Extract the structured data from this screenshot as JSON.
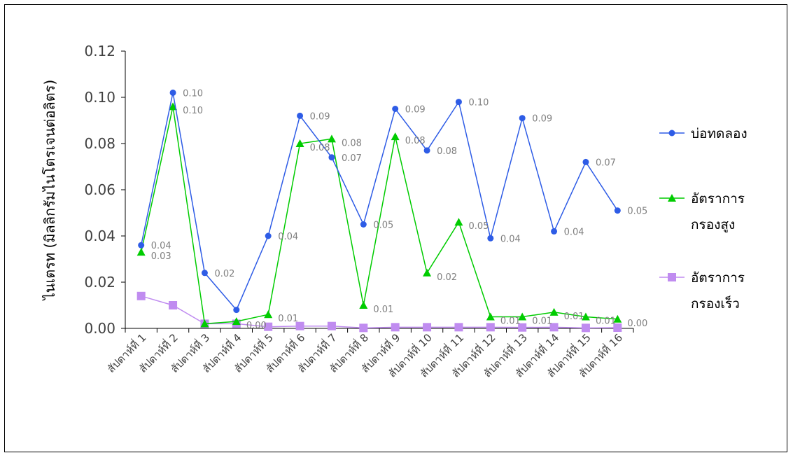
{
  "chart_data": {
    "type": "line",
    "title": "",
    "xlabel": "",
    "ylabel": "ไนเตรท (มิลลิกรัมไนโตรเจนต่อลิตร)",
    "ylim": [
      0,
      0.12
    ],
    "yticks": [
      "0.00",
      "0.02",
      "0.04",
      "0.06",
      "0.08",
      "0.10",
      "0.12"
    ],
    "grid": false,
    "legend_position": "right",
    "categories": [
      "สัปดาห์ที่ 1",
      "สัปดาห์ที่ 2",
      "สัปดาห์ที่ 3",
      "สัปดาห์ที่ 4",
      "สัปดาห์ที่ 5",
      "สัปดาห์ที่ 6",
      "สัปดาห์ที่ 7",
      "สัปดาห์ที่ 8",
      "สัปดาห์ที่ 9",
      "สัปดาห์ที่ 10",
      "สัปดาห์ที่ 11",
      "สัปดาห์ที่ 12",
      "สัปดาห์ที่ 13",
      "สัปดาห์ที่ 14",
      "สัปดาห์ที่ 15",
      "สัปดาห์ที่ 16"
    ],
    "series": [
      {
        "name": "บ่อทดลอง",
        "legend_lines": [
          "บ่อทดลอง"
        ],
        "color": "#2e5ce6",
        "marker": "circle",
        "values": [
          0.036,
          0.102,
          0.024,
          0.008,
          0.04,
          0.092,
          0.074,
          0.045,
          0.095,
          0.077,
          0.098,
          0.039,
          0.091,
          0.042,
          0.072,
          0.051
        ],
        "labels": [
          "0.04",
          "0.10",
          "0.02",
          "",
          "0.04",
          "0.09",
          "0.07",
          "0.05",
          "0.09",
          "0.08",
          "0.10",
          "0.04",
          "0.09",
          "0.04",
          "0.07",
          "0.05"
        ]
      },
      {
        "name": "อัตราการกรองสูง",
        "legend_lines": [
          "อัตราการ",
          "กรองสูง"
        ],
        "color": "#00cc00",
        "marker": "triangle",
        "values": [
          0.033,
          0.096,
          0.002,
          0.003,
          0.006,
          0.08,
          0.082,
          0.01,
          0.083,
          0.024,
          0.046,
          0.005,
          0.005,
          0.007,
          0.005,
          0.004
        ],
        "labels": [
          "0.03",
          "0.10",
          "",
          "0.00",
          "0.01",
          "0.08",
          "0.08",
          "0.01",
          "0.08",
          "0.02",
          "0.05",
          "0.01",
          "0.01",
          "0.01",
          "0.01",
          "0.00"
        ]
      },
      {
        "name": "อัตราการกรองเร็ว",
        "legend_lines": [
          "อัตราการ",
          "กรองเร็ว"
        ],
        "color": "#c08cf0",
        "marker": "square",
        "values": [
          0.014,
          0.01,
          0.002,
          0.002,
          0.0007,
          0.001,
          0.001,
          0.0002,
          0.0005,
          0.0005,
          0.0005,
          0.0005,
          0.0004,
          0.0005,
          0.0002,
          0.0003
        ],
        "labels": []
      }
    ]
  }
}
